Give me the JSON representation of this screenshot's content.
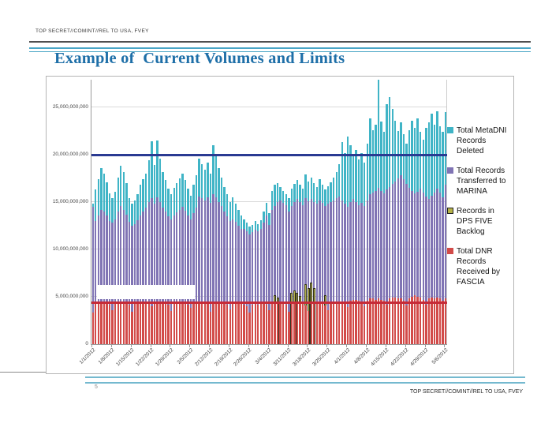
{
  "header": {
    "classification": "TOP SECRET//COMINT//REL TO USA, FVEY",
    "title": "Example of  Current Volumes and Limits"
  },
  "footer": {
    "page_number": "5",
    "classification": "TOP SECRET//COMINT//REL TO USA, FVEY"
  },
  "colors": {
    "title_blue": "#1e6fa8",
    "rule_teal": "#49a5c6",
    "bar_teal": "#3fb4c6",
    "bar_purple": "#8074b4",
    "bar_backlog": "#b5b148",
    "bar_red": "#d24b49",
    "limit_navy": "#2a3a92",
    "limit_red": "#c62b38"
  },
  "chart_data": {
    "type": "bar",
    "title": "",
    "xlabel": "",
    "ylabel": "",
    "units": "records (billions)",
    "x_start": "1/1/2012",
    "x_end": "5/6/2012",
    "frequency": "daily",
    "grid": true,
    "legend_position": "right",
    "ylim_billion": [
      0,
      28
    ],
    "y_ticks": [
      "0",
      "5,000,000,000",
      "10,000,000,000",
      "15,000,000,000",
      "20,000,000,000",
      "25,000,000,000"
    ],
    "x_tick_labels": [
      "1/1/2012",
      "1/8/2012",
      "1/15/2012",
      "1/22/2012",
      "1/29/2012",
      "2/5/2012",
      "2/12/2012",
      "2/19/2012",
      "2/26/2012",
      "3/4/2012",
      "3/11/2012",
      "3/18/2012",
      "3/25/2012",
      "4/1/2012",
      "4/8/2012",
      "4/15/2012",
      "4/22/2012",
      "4/29/2012",
      "5/6/2012"
    ],
    "limit_lines": [
      {
        "value_billion": 20,
        "color": "#2a3a92",
        "thickness": 3
      },
      {
        "value_billion": 4.4,
        "color": "#c62b38",
        "thickness": 3
      }
    ],
    "redaction_box": {
      "day_start": 2,
      "day_end": 37,
      "value_from_billion": 4.75,
      "value_to_billion": 6.25
    },
    "series": [
      {
        "key": "metadni-deleted",
        "name": "Total MetaDNI Records Deleted",
        "color": "#3fb4c6",
        "outlined": false,
        "values_billion": [
          14.8,
          16.3,
          17.4,
          18.6,
          18.0,
          17.1,
          15.9,
          15.4,
          16.1,
          17.6,
          18.8,
          18.2,
          17.0,
          15.4,
          14.8,
          15.2,
          15.8,
          16.8,
          17.4,
          18.0,
          19.4,
          21.4,
          18.9,
          21.5,
          19.6,
          18.2,
          17.3,
          16.4,
          15.8,
          16.5,
          17.0,
          17.5,
          18.0,
          17.3,
          16.4,
          15.7,
          16.8,
          17.8,
          19.6,
          19.0,
          18.4,
          19.2,
          18.0,
          21.0,
          19.8,
          18.6,
          17.6,
          16.6,
          15.8,
          15.0,
          15.5,
          14.8,
          14.2,
          13.6,
          13.2,
          12.8,
          12.4,
          12.6,
          13.0,
          12.7,
          13.1,
          14.0,
          14.9,
          13.8,
          16.2,
          16.8,
          17.0,
          16.6,
          16.2,
          15.8,
          15.4,
          16.4,
          16.9,
          17.3,
          16.8,
          16.4,
          17.9,
          17.2,
          17.6,
          17.0,
          16.6,
          17.4,
          16.8,
          16.3,
          16.7,
          17.1,
          17.6,
          18.2,
          19.0,
          21.3,
          20.2,
          21.9,
          21.0,
          19.8,
          20.5,
          19.5,
          20.2,
          19.2,
          21.2,
          23.8,
          22.6,
          23.2,
          27.9,
          23.5,
          22.4,
          25.3,
          26.1,
          24.8,
          23.6,
          22.5,
          23.4,
          22.2,
          21.2,
          22.6,
          23.6,
          22.8,
          23.8,
          22.4,
          21.6,
          22.8,
          23.4,
          24.3,
          23.2,
          24.6,
          23.0,
          22.4,
          24.5
        ]
      },
      {
        "key": "marina-transferred",
        "name": "Total Records Transferred to MARINA",
        "color": "#8074b4",
        "outlined": false,
        "values_billion": [
          14.5,
          13.0,
          13.6,
          14.2,
          14.0,
          13.6,
          13.0,
          12.8,
          13.2,
          14.0,
          14.6,
          14.2,
          13.7,
          12.9,
          12.5,
          12.7,
          13.1,
          13.6,
          14.0,
          14.4,
          15.0,
          15.4,
          14.8,
          15.5,
          15.0,
          14.4,
          14.0,
          13.5,
          13.2,
          13.6,
          13.9,
          14.2,
          14.5,
          14.1,
          13.6,
          13.2,
          13.8,
          14.4,
          15.6,
          15.4,
          15.2,
          15.5,
          14.9,
          15.8,
          15.5,
          15.0,
          14.6,
          14.0,
          13.5,
          13.0,
          13.2,
          12.9,
          12.5,
          12.2,
          12.2,
          11.9,
          11.6,
          11.8,
          12.1,
          11.9,
          12.2,
          12.8,
          13.6,
          12.6,
          14.2,
          14.6,
          15.0,
          15.2,
          14.9,
          14.7,
          14.0,
          14.6,
          15.0,
          15.3,
          15.0,
          14.7,
          15.4,
          15.1,
          15.3,
          15.0,
          14.8,
          15.2,
          14.9,
          14.6,
          14.8,
          15.0,
          15.2,
          15.4,
          15.6,
          15.2,
          14.8,
          14.5,
          15.0,
          15.3,
          15.0,
          14.7,
          14.9,
          14.6,
          15.2,
          15.8,
          16.0,
          16.2,
          16.5,
          16.2,
          15.9,
          16.3,
          16.6,
          16.9,
          17.2,
          17.5,
          17.8,
          17.4,
          16.9,
          16.5,
          16.2,
          15.9,
          16.1,
          16.4,
          16.0,
          15.6,
          15.3,
          15.7,
          16.0,
          16.4,
          16.0,
          15.5,
          16.8
        ]
      },
      {
        "key": "dps-five-backlog",
        "name": "Records in DPS FIVE Backlog",
        "color": "#b5b148",
        "outlined": true,
        "values_billion": [
          0,
          0,
          0,
          0,
          0,
          0,
          0,
          0,
          0,
          0,
          0,
          0,
          0,
          0,
          0,
          0,
          0,
          0,
          0,
          0,
          0,
          0,
          0,
          0,
          0,
          0,
          0,
          0,
          0,
          0,
          0,
          0,
          0,
          0,
          0,
          0,
          0,
          0,
          0,
          0,
          0,
          0,
          0,
          0,
          0,
          0,
          0,
          0,
          0,
          0,
          0,
          0,
          0,
          0,
          0,
          0,
          0,
          0,
          0,
          0,
          0,
          0,
          0,
          0,
          0,
          5.2,
          4.9,
          0,
          0,
          0,
          0,
          5.4,
          5.7,
          5.4,
          5.1,
          0,
          6.3,
          5.9,
          6.5,
          5.9,
          0,
          0,
          0,
          5.2,
          0,
          0,
          0,
          0,
          0,
          0,
          0,
          0,
          0,
          0,
          0,
          0,
          0,
          0,
          0,
          0,
          0,
          0,
          0,
          0,
          0,
          0,
          0,
          0,
          0,
          0,
          0,
          0,
          0,
          0,
          0,
          0,
          0,
          0,
          0,
          0,
          0,
          0,
          0,
          0,
          0,
          0,
          0
        ]
      },
      {
        "key": "fascia-dnr-received",
        "name": "Total DNR Records Received by FASCIA",
        "color": "#d24b49",
        "outlined": false,
        "values_billion": [
          3.3,
          4.4,
          4.5,
          4.5,
          4.4,
          4.4,
          4.2,
          3.6,
          4.4,
          4.5,
          4.5,
          4.4,
          4.4,
          4.2,
          3.4,
          4.3,
          4.4,
          4.4,
          4.5,
          4.5,
          4.4,
          4.0,
          4.4,
          4.5,
          4.5,
          4.4,
          4.4,
          4.2,
          3.5,
          4.4,
          4.5,
          4.5,
          4.4,
          4.4,
          4.2,
          3.8,
          4.4,
          4.5,
          4.5,
          4.5,
          4.4,
          4.3,
          3.4,
          4.4,
          4.5,
          4.5,
          4.4,
          4.4,
          4.2,
          3.7,
          4.3,
          4.4,
          4.4,
          4.3,
          4.2,
          4.0,
          3.3,
          4.2,
          4.3,
          4.2,
          4.3,
          4.4,
          4.2,
          3.6,
          4.4,
          4.4,
          4.5,
          4.4,
          4.4,
          4.2,
          3.4,
          4.3,
          4.4,
          4.4,
          4.4,
          4.3,
          4.1,
          3.5,
          4.3,
          4.4,
          4.4,
          4.4,
          4.3,
          4.1,
          3.6,
          4.4,
          4.5,
          4.5,
          4.4,
          4.4,
          4.3,
          3.9,
          4.6,
          4.7,
          4.7,
          4.6,
          4.5,
          4.0,
          4.6,
          4.8,
          4.8,
          4.7,
          4.8,
          4.7,
          4.6,
          4.2,
          4.8,
          4.9,
          4.9,
          4.8,
          4.8,
          4.6,
          4.1,
          4.8,
          5.0,
          5.2,
          5.0,
          4.9,
          4.7,
          4.2,
          4.8,
          4.9,
          4.8,
          4.9,
          4.8,
          4.6,
          4.8
        ]
      }
    ]
  }
}
